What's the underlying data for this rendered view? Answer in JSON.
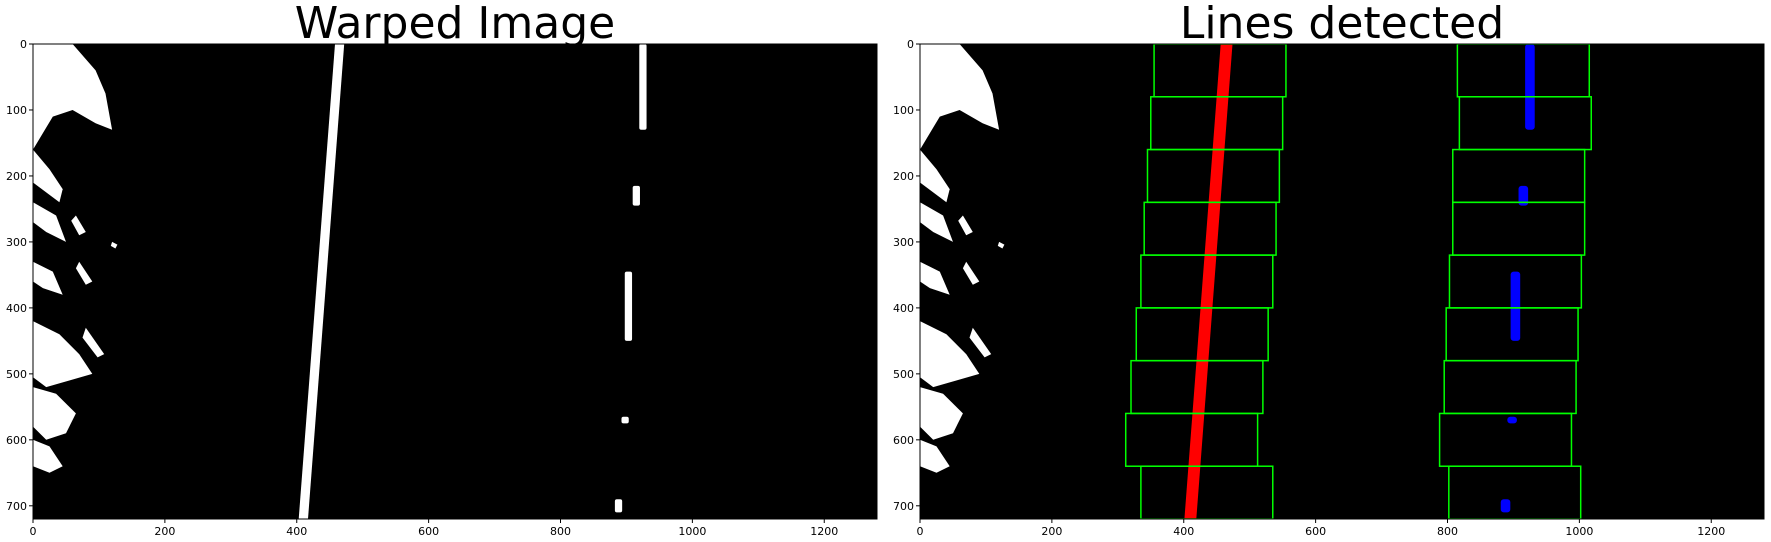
{
  "chart_data": [
    {
      "type": "image",
      "title": "Warped Image",
      "xlim": [
        0,
        1280
      ],
      "ylim": [
        720,
        0
      ],
      "xticks": [
        0,
        200,
        400,
        600,
        800,
        1000,
        1200
      ],
      "yticks": [
        0,
        100,
        200,
        300,
        400,
        500,
        600,
        700
      ],
      "background_color": "#000000",
      "pixel_color": "#ffffff",
      "left_lane": {
        "x_top": 465,
        "x_bottom": 410
      },
      "right_lane_segments": [
        {
          "y_start": 0,
          "y_end": 130,
          "x": 925
        },
        {
          "y_start": 215,
          "y_end": 245,
          "x": 915
        },
        {
          "y_start": 345,
          "y_end": 450,
          "x": 903
        },
        {
          "y_start": 565,
          "y_end": 575,
          "x": 898
        },
        {
          "y_start": 690,
          "y_end": 710,
          "x": 888
        }
      ]
    },
    {
      "type": "image",
      "title": "Lines detected",
      "xlim": [
        0,
        1280
      ],
      "ylim": [
        720,
        0
      ],
      "xticks": [
        0,
        200,
        400,
        600,
        800,
        1000,
        1200
      ],
      "yticks": [
        0,
        100,
        200,
        300,
        400,
        500,
        600,
        700
      ],
      "left_line_color": "#ff0000",
      "right_line_color": "#0000ff",
      "window_color": "#00ff00",
      "left_windows": [
        {
          "y_top": 0,
          "y_bottom": 80,
          "x_left": 355,
          "x_right": 555
        },
        {
          "y_top": 80,
          "y_bottom": 160,
          "x_left": 350,
          "x_right": 550
        },
        {
          "y_top": 160,
          "y_bottom": 240,
          "x_left": 345,
          "x_right": 545
        },
        {
          "y_top": 240,
          "y_bottom": 320,
          "x_left": 340,
          "x_right": 540
        },
        {
          "y_top": 320,
          "y_bottom": 400,
          "x_left": 335,
          "x_right": 535
        },
        {
          "y_top": 400,
          "y_bottom": 480,
          "x_left": 328,
          "x_right": 528
        },
        {
          "y_top": 480,
          "y_bottom": 560,
          "x_left": 320,
          "x_right": 520
        },
        {
          "y_top": 560,
          "y_bottom": 640,
          "x_left": 312,
          "x_right": 512
        },
        {
          "y_top": 640,
          "y_bottom": 720,
          "x_left": 335,
          "x_right": 535
        }
      ],
      "right_windows": [
        {
          "y_top": 0,
          "y_bottom": 80,
          "x_left": 815,
          "x_right": 1015
        },
        {
          "y_top": 80,
          "y_bottom": 160,
          "x_left": 818,
          "x_right": 1018
        },
        {
          "y_top": 160,
          "y_bottom": 240,
          "x_left": 808,
          "x_right": 1008
        },
        {
          "y_top": 240,
          "y_bottom": 320,
          "x_left": 808,
          "x_right": 1008
        },
        {
          "y_top": 320,
          "y_bottom": 400,
          "x_left": 803,
          "x_right": 1003
        },
        {
          "y_top": 400,
          "y_bottom": 480,
          "x_left": 798,
          "x_right": 998
        },
        {
          "y_top": 480,
          "y_bottom": 560,
          "x_left": 795,
          "x_right": 995
        },
        {
          "y_top": 560,
          "y_bottom": 640,
          "x_left": 788,
          "x_right": 988
        },
        {
          "y_top": 640,
          "y_bottom": 720,
          "x_left": 802,
          "x_right": 1002
        }
      ]
    }
  ]
}
